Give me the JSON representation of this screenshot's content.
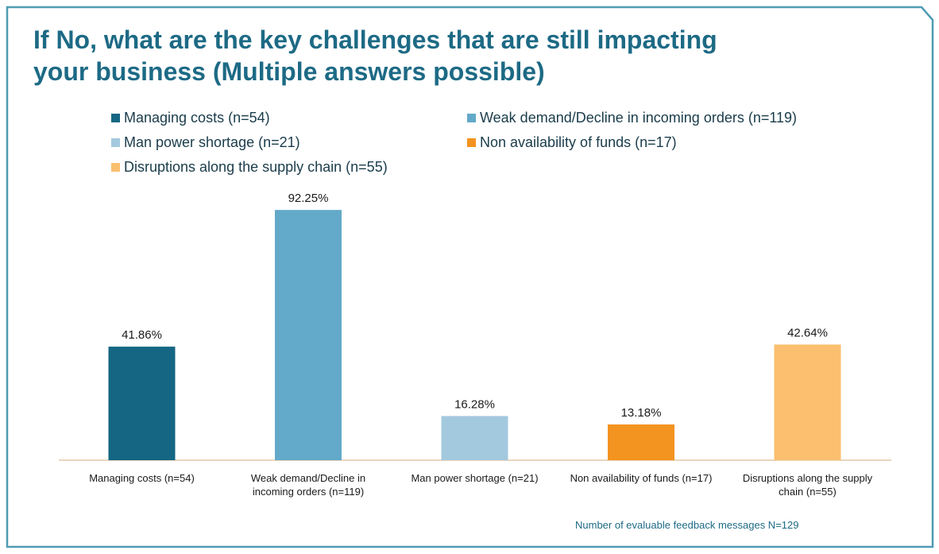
{
  "title_lines": [
    "If No, what are the key challenges that are still impacting",
    "your business (Multiple answers possible)"
  ],
  "colors": {
    "frame": "#4f9bb3",
    "title": "#1d6a85",
    "axis": "#e3c9a8"
  },
  "footnote": "Number of evaluable feedback messages N=129",
  "chart_data": {
    "type": "bar",
    "title": "If No, what are the key challenges that are still impacting your business (Multiple answers possible)",
    "categories": [
      [
        "Managing costs (n=54)"
      ],
      [
        "Weak demand/Decline in",
        "incoming orders (n=119)"
      ],
      [
        "Man power shortage (n=21)"
      ],
      [
        "Non availability of funds (n=17)"
      ],
      [
        "Disruptions along the supply",
        "chain (n=55)"
      ]
    ],
    "values": [
      41.86,
      92.25,
      16.28,
      13.18,
      42.64
    ],
    "value_labels": [
      "41.86%",
      "92.25%",
      "16.28%",
      "13.18%",
      "42.64%"
    ],
    "bar_colors": [
      "#146683",
      "#63a9c9",
      "#a3c9de",
      "#f39320",
      "#fbbf6f"
    ],
    "legend": [
      {
        "label": "Managing costs (n=54)",
        "color": "#146683"
      },
      {
        "label": "Weak demand/Decline in incoming orders (n=119)",
        "color": "#63a9c9"
      },
      {
        "label": "Man power shortage (n=21)",
        "color": "#a3c9de"
      },
      {
        "label": "Non availability of funds (n=17)",
        "color": "#f39320"
      },
      {
        "label": "Disruptions along the supply chain (n=55)",
        "color": "#fbbf6f"
      }
    ],
    "legend_placement": "top",
    "ylim": [
      0,
      100
    ],
    "grid": false,
    "xlabel": "",
    "ylabel": ""
  }
}
